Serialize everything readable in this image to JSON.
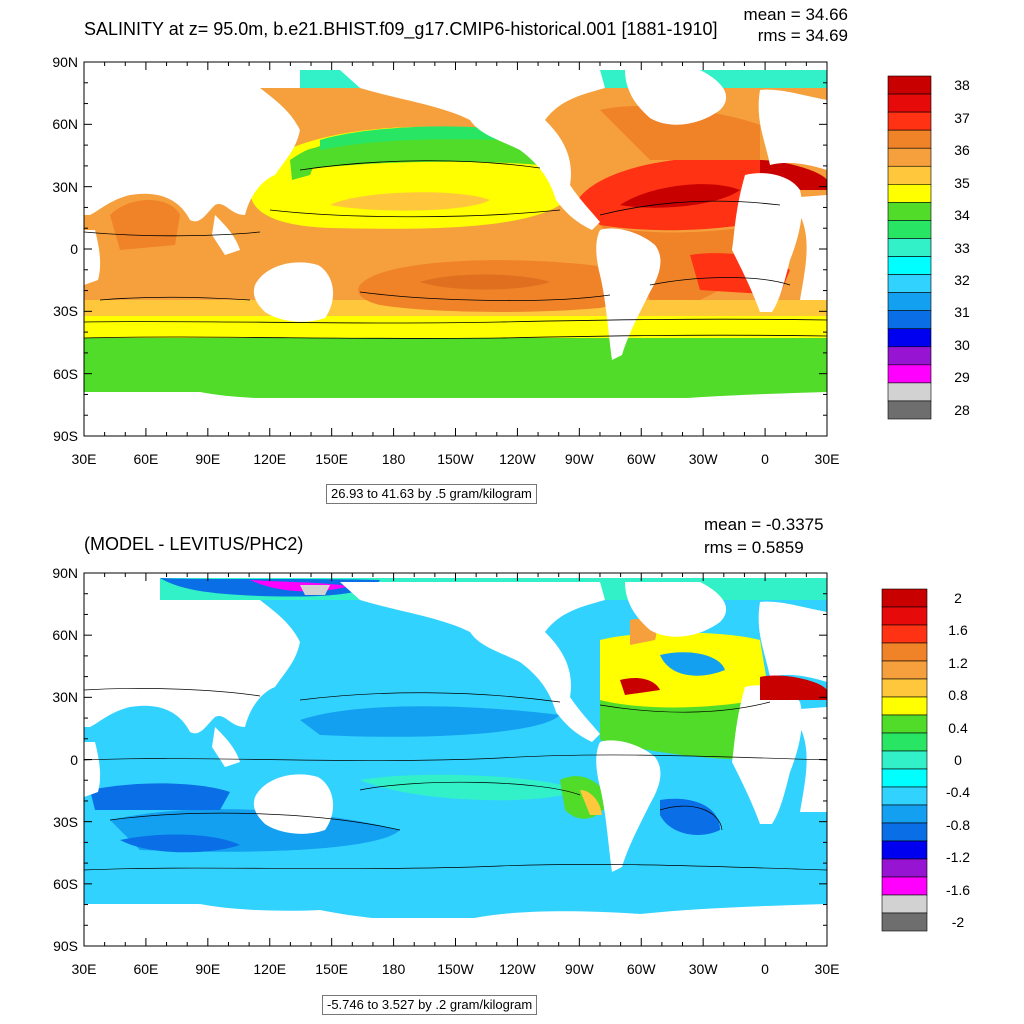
{
  "panel_top": {
    "title": "SALINITY at z=  95.0m, b.e21.BHIST.f09_g17.CMIP6-historical.001 [1881-1910]",
    "mean_text": "mean = 34.66",
    "rms_text": "rms = 34.69",
    "contour_info": "26.93 to 41.63 by .5 gram/kilogram",
    "colorbar_labels": [
      "38",
      "37",
      "36",
      "35",
      "34",
      "33",
      "32",
      "31",
      "30",
      "29",
      "28"
    ],
    "colorbar_colors": [
      "#c80000",
      "#e60a0a",
      "#ff3214",
      "#f08228",
      "#f5a03c",
      "#ffc83c",
      "#ffff00",
      "#50dc28",
      "#28e664",
      "#32f0c8",
      "#00ffff",
      "#32d2ff",
      "#14a0f0",
      "#0a6ee6",
      "#0000f0",
      "#9614d2",
      "#ff00ff",
      "#d2d2d2",
      "#6e6e6e"
    ]
  },
  "panel_bottom": {
    "title": "(MODEL - LEVITUS/PHC2)",
    "mean_text": "mean = -0.3375",
    "rms_text": "rms = 0.5859",
    "contour_info": "-5.746 to 3.527 by .2 gram/kilogram",
    "colorbar_labels": [
      "2",
      "1.6",
      "1.2",
      "0.8",
      "0.4",
      "0",
      "-0.4",
      "-0.8",
      "-1.2",
      "-1.6",
      "-2"
    ],
    "colorbar_colors": [
      "#c80000",
      "#e60a0a",
      "#ff3214",
      "#f08228",
      "#f5a03c",
      "#ffc83c",
      "#ffff00",
      "#50dc28",
      "#28e664",
      "#32f0c8",
      "#00ffff",
      "#32d2ff",
      "#14a0f0",
      "#0a6ee6",
      "#0000f0",
      "#9614d2",
      "#ff00ff",
      "#d2d2d2",
      "#6e6e6e"
    ]
  },
  "axes": {
    "lat_labels": [
      "90N",
      "60N",
      "30N",
      "0",
      "30S",
      "60S",
      "90S"
    ],
    "lon_labels": [
      "30E",
      "60E",
      "90E",
      "120E",
      "150E",
      "180",
      "150W",
      "120W",
      "90W",
      "60W",
      "30W",
      "0",
      "30E"
    ]
  },
  "colors": {
    "land": "#ffffff",
    "frame": "#000000"
  }
}
